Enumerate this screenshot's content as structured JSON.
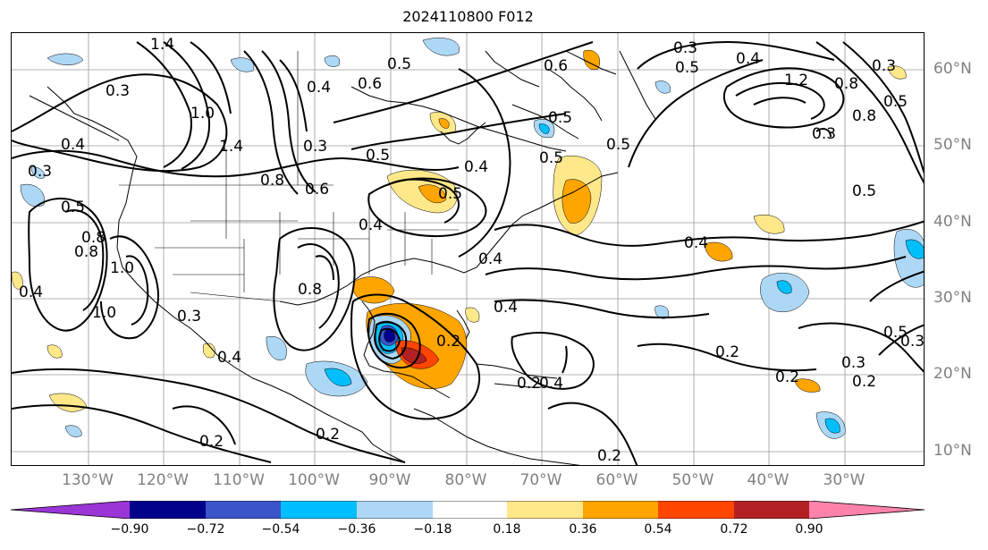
{
  "title": "2024110800 F012",
  "lon_labels": [
    "130°W",
    "120°W",
    "110°W",
    "100°W",
    "90°W",
    "80°W",
    "70°W",
    "60°W",
    "50°W",
    "40°W",
    "30°W"
  ],
  "lat_labels": [
    "60°N",
    "50°N",
    "40°N",
    "30°N",
    "20°N",
    "10°N"
  ],
  "colorbar": {
    "ticks": [
      "−0.90",
      "−0.72",
      "−0.54",
      "−0.36",
      "−0.18",
      "0.18",
      "0.36",
      "0.54",
      "0.72",
      "0.90"
    ],
    "colors": [
      "#9a35d6",
      "#00008b",
      "#3a55c8",
      "#00bfff",
      "#add8f5",
      "#ffffff",
      "#ffe88a",
      "#ffa500",
      "#ff4500",
      "#b22222",
      "#ff82ab"
    ]
  },
  "contour_labels": [
    "1.4",
    "0.3",
    "0.4",
    "0.3",
    "0.5",
    "1.0",
    "1.4",
    "0.8",
    "0.6",
    "0.3",
    "0.5",
    "0.4",
    "0.4",
    "0.5",
    "0.6",
    "0.4",
    "0.5",
    "0.5",
    "0.6",
    "0.5",
    "0.4",
    "0.8",
    "1.0",
    "0.8",
    "0.4",
    "0.3",
    "1.0",
    "0.4",
    "0.8",
    "0.4",
    "0.4",
    "0.2",
    "0.2",
    "0.2",
    "0.4",
    "0.2",
    "0.3",
    "0.2",
    "0.2",
    "0.3",
    "0.5",
    "0.8",
    "0.3",
    "0.5",
    "1.2",
    "0.8",
    "0.3",
    "0.5",
    "0.4",
    "0.5",
    "0.3",
    "0.2",
    "0.5",
    "0.2"
  ]
}
